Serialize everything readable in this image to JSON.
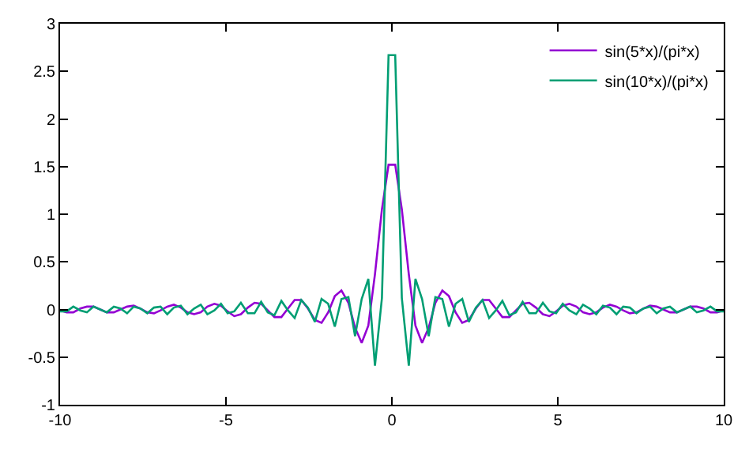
{
  "chart_data": {
    "type": "line",
    "x": [
      -10,
      -9.8,
      -9.6,
      -9.39,
      -9.19,
      -8.99,
      -8.79,
      -8.59,
      -8.38,
      -8.18,
      -7.98,
      -7.78,
      -7.58,
      -7.37,
      -7.17,
      -6.97,
      -6.77,
      -6.57,
      -6.36,
      -6.16,
      -5.96,
      -5.76,
      -5.56,
      -5.35,
      -5.15,
      -4.95,
      -4.75,
      -4.55,
      -4.34,
      -4.14,
      -3.94,
      -3.74,
      -3.54,
      -3.33,
      -3.13,
      -2.93,
      -2.73,
      -2.53,
      -2.32,
      -2.12,
      -1.92,
      -1.72,
      -1.52,
      -1.31,
      -1.11,
      -0.91,
      -0.71,
      -0.51,
      -0.3,
      -0.1,
      0.1,
      0.3,
      0.51,
      0.71,
      0.91,
      1.11,
      1.31,
      1.52,
      1.72,
      1.92,
      2.12,
      2.32,
      2.53,
      2.73,
      2.93,
      3.13,
      3.33,
      3.54,
      3.74,
      3.94,
      4.14,
      4.34,
      4.55,
      4.75,
      4.95,
      5.15,
      5.35,
      5.56,
      5.76,
      5.96,
      6.16,
      6.36,
      6.57,
      6.77,
      6.97,
      7.17,
      7.37,
      7.58,
      7.78,
      7.98,
      8.18,
      8.38,
      8.59,
      8.79,
      8.99,
      9.19,
      9.39,
      9.6,
      9.8,
      10
    ],
    "series": [
      {
        "name": "sin(5*x)/(pi*x)",
        "color": "#9400d3",
        "values": [
          -0.01,
          -0.03,
          -0.03,
          0.01,
          0.03,
          0.03,
          0.0,
          -0.03,
          -0.03,
          0.0,
          0.03,
          0.04,
          0.01,
          -0.03,
          -0.04,
          -0.01,
          0.03,
          0.05,
          0.02,
          -0.03,
          -0.05,
          -0.03,
          0.03,
          0.06,
          0.04,
          -0.02,
          -0.07,
          -0.05,
          0.02,
          0.07,
          0.06,
          -0.01,
          -0.08,
          -0.08,
          0.01,
          0.1,
          0.1,
          0.01,
          -0.11,
          -0.14,
          -0.03,
          0.14,
          0.2,
          0.07,
          -0.19,
          -0.35,
          -0.17,
          0.37,
          1.05,
          1.52,
          1.52,
          1.05,
          0.37,
          -0.17,
          -0.35,
          -0.19,
          0.07,
          0.2,
          0.14,
          -0.03,
          -0.14,
          -0.11,
          0.01,
          0.1,
          0.1,
          0.01,
          -0.08,
          -0.08,
          -0.01,
          0.06,
          0.07,
          0.02,
          -0.05,
          -0.07,
          -0.02,
          0.04,
          0.06,
          0.03,
          -0.03,
          -0.05,
          -0.03,
          0.02,
          0.05,
          0.03,
          -0.01,
          -0.04,
          -0.03,
          0.01,
          0.04,
          0.03,
          0.0,
          -0.03,
          -0.03,
          0.0,
          0.03,
          0.03,
          0.01,
          -0.03,
          -0.03,
          -0.01
        ]
      },
      {
        "name": "sin(10*x)/(pi*x)",
        "color": "#009e73",
        "values": [
          -0.02,
          -0.02,
          0.03,
          -0.01,
          -0.03,
          0.03,
          0.0,
          -0.03,
          0.03,
          0.01,
          -0.04,
          0.03,
          0.01,
          -0.04,
          0.02,
          0.03,
          -0.05,
          0.02,
          0.04,
          -0.05,
          0.01,
          0.05,
          -0.05,
          -0.01,
          0.06,
          -0.04,
          -0.02,
          0.07,
          -0.04,
          -0.04,
          0.08,
          -0.03,
          -0.06,
          0.09,
          -0.01,
          -0.09,
          0.1,
          0.02,
          -0.13,
          0.11,
          0.06,
          -0.18,
          0.11,
          0.13,
          -0.28,
          0.11,
          0.32,
          -0.59,
          0.12,
          2.67,
          2.67,
          0.12,
          -0.59,
          0.32,
          0.11,
          -0.28,
          0.13,
          0.11,
          -0.18,
          0.06,
          0.11,
          -0.13,
          0.02,
          0.1,
          -0.09,
          -0.01,
          0.09,
          -0.06,
          -0.03,
          0.08,
          -0.04,
          -0.04,
          0.07,
          -0.02,
          -0.04,
          0.06,
          -0.01,
          -0.05,
          0.05,
          0.01,
          -0.05,
          0.04,
          0.02,
          -0.05,
          0.03,
          0.02,
          -0.04,
          0.01,
          0.03,
          -0.04,
          0.01,
          0.03,
          -0.03,
          0.0,
          0.03,
          -0.03,
          -0.01,
          0.03,
          -0.02,
          -0.02
        ]
      }
    ],
    "xlim": [
      -10,
      10
    ],
    "xticks": [
      -10,
      -5,
      0,
      5,
      10
    ],
    "ylim": [
      -1,
      3
    ],
    "yticks": [
      -1,
      -0.5,
      0,
      0.5,
      1,
      1.5,
      2,
      2.5,
      3
    ],
    "legend": "top right",
    "marker": "none",
    "line_style": "solid"
  }
}
